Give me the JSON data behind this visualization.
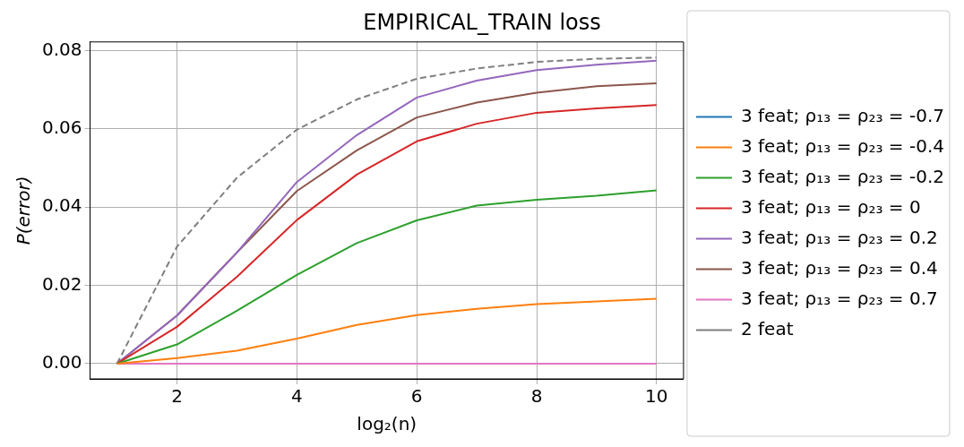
{
  "chart_data": {
    "type": "line",
    "title": "EMPIRICAL_TRAIN loss",
    "xlabel": "log₂(n)",
    "ylabel": "P(error)",
    "x": [
      1,
      2,
      3,
      4,
      5,
      6,
      7,
      8,
      9,
      10
    ],
    "xlim": [
      0.55,
      10.45
    ],
    "xticks": [
      2,
      4,
      6,
      8,
      10
    ],
    "ylim": [
      -0.0039,
      0.0822
    ],
    "yticks": [
      {
        "value": 0,
        "label": "0.00"
      },
      {
        "value": 0.02,
        "label": "0.02"
      },
      {
        "value": 0.04,
        "label": "0.04"
      },
      {
        "value": 0.06,
        "label": "0.06"
      },
      {
        "value": 0.08,
        "label": "0.08"
      }
    ],
    "grid": true,
    "legend": "right",
    "marker": "none",
    "line_style": "solid",
    "series": [
      {
        "name": "3 feat; ρ₁₃ = ρ₂₃ = -0.7",
        "color": "#1f77b4",
        "values": [
          null,
          null,
          null,
          null,
          null,
          null,
          null,
          null,
          null,
          null
        ]
      },
      {
        "name": "3 feat; ρ₁₃ = ρ₂₃ = -0.4",
        "color": "#ff7f0e",
        "values": [
          0,
          0.0014,
          0.0033,
          0.0064,
          0.0099,
          0.0124,
          0.014,
          0.0152,
          0.0159,
          0.0166
        ]
      },
      {
        "name": "3 feat; ρ₁₃ = ρ₂₃ = -0.2",
        "color": "#2ca02c",
        "values": [
          0,
          0.0049,
          0.0135,
          0.0227,
          0.0308,
          0.0366,
          0.0404,
          0.0419,
          0.0429,
          0.0443
        ]
      },
      {
        "name": "3 feat; ρ₁₃ = ρ₂₃ = 0",
        "color": "#d62728",
        "values": [
          0,
          0.0094,
          0.0222,
          0.0367,
          0.0483,
          0.0568,
          0.0613,
          0.0641,
          0.0652,
          0.0661
        ]
      },
      {
        "name": "3 feat; ρ₁₃ = ρ₂₃ = 0.2",
        "color": "#9467bd",
        "values": [
          0,
          0.0123,
          0.0284,
          0.0464,
          0.0584,
          0.068,
          0.0723,
          0.075,
          0.0764,
          0.0774
        ]
      },
      {
        "name": "3 feat; ρ₁₃ = ρ₂₃ = 0.4",
        "color": "#8c564b",
        "values": [
          0,
          0.0123,
          0.0284,
          0.0441,
          0.0545,
          0.0629,
          0.0667,
          0.0692,
          0.0709,
          0.0716
        ]
      },
      {
        "name": "3 feat; ρ₁₃ = ρ₂₃ = 0.7",
        "color": "#e377c2",
        "values": [
          0,
          0,
          0,
          0,
          0,
          0,
          0,
          0,
          0,
          0
        ]
      },
      {
        "name": "2 feat",
        "color": "#7f7f7f",
        "line_style": "dashed",
        "values": [
          0,
          0.0299,
          0.0475,
          0.0598,
          0.0675,
          0.0728,
          0.0754,
          0.0771,
          0.0779,
          0.0782
        ]
      }
    ]
  }
}
